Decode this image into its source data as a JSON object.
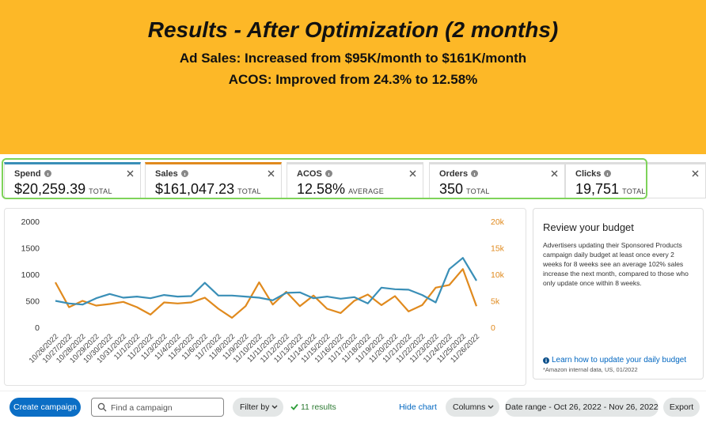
{
  "header": {
    "title": "Results - After Optimization (2 months)",
    "lines": [
      "Ad Sales: Increased from $95K/month to $161K/month",
      "ACOS: Improved from 24.3% to 12.58%"
    ]
  },
  "metrics": [
    {
      "label": "Spend",
      "value": "$20,259.39",
      "unit": "TOTAL"
    },
    {
      "label": "Sales",
      "value": "$161,047.23",
      "unit": "TOTAL"
    },
    {
      "label": "ACOS",
      "value": "12.58%",
      "unit": "AVERAGE"
    },
    {
      "label": "Orders",
      "value": "350",
      "unit": "TOTAL"
    },
    {
      "label": "Clicks",
      "value": "19,751",
      "unit": "TOTAL"
    }
  ],
  "chart_data": {
    "type": "line",
    "categories": [
      "10/26/2022",
      "10/27/2022",
      "10/28/2022",
      "10/29/2022",
      "10/30/2022",
      "10/31/2022",
      "11/1/2022",
      "11/2/2022",
      "11/3/2022",
      "11/4/2022",
      "11/5/2022",
      "11/6/2022",
      "11/7/2022",
      "11/8/2022",
      "11/9/2022",
      "11/10/2022",
      "11/11/2022",
      "11/12/2022",
      "11/13/2022",
      "11/14/2022",
      "11/15/2022",
      "11/16/2022",
      "11/17/2022",
      "11/18/2022",
      "11/19/2022",
      "11/20/2022",
      "11/21/2022",
      "11/22/2022",
      "11/23/2022",
      "11/24/2022",
      "11/25/2022",
      "11/26/2022"
    ],
    "series": [
      {
        "color": "#3a8fb7",
        "axis": "y",
        "values": [
          500,
          450,
          430,
          550,
          630,
          560,
          580,
          550,
          610,
          580,
          590,
          840,
          600,
          600,
          580,
          560,
          510,
          650,
          660,
          550,
          580,
          540,
          570,
          450,
          750,
          720,
          710,
          610,
          470,
          1100,
          1310,
          880
        ]
      },
      {
        "color": "#e08a1e",
        "axis": "y2",
        "values": [
          8500,
          3800,
          5000,
          4100,
          4400,
          4800,
          3800,
          2400,
          4700,
          4500,
          4700,
          5600,
          3500,
          1800,
          4000,
          8500,
          4300,
          6700,
          4000,
          6000,
          3500,
          2700,
          5000,
          6200,
          4200,
          5900,
          3000,
          4200,
          7500,
          8000,
          11000,
          4000
        ]
      }
    ],
    "ylim": [
      0,
      2000
    ],
    "yticks": [
      0,
      500,
      1000,
      1500,
      2000
    ],
    "y2lim": [
      0,
      20000
    ],
    "y2ticks": [
      0,
      {
        "value": 5000,
        "label": "5k"
      },
      {
        "value": 10000,
        "label": "10k"
      },
      {
        "value": 15000,
        "label": "15k"
      },
      {
        "value": 20000,
        "label": "20k"
      }
    ],
    "grid": false
  },
  "sidebar": {
    "title": "Review your budget",
    "body": "Advertisers updating their Sponsored Products campaign daily budget at least once every 2 weeks for 8 weeks see an average 102% sales increase the next month, compared to those who only update once within 8 weeks.",
    "link": "Learn how to update your daily budget",
    "note": "*Amazon internal data, US, 01/2022"
  },
  "toolbar": {
    "create": "Create campaign",
    "search": "Find a campaign",
    "filter": "Filter by",
    "results": "11 results",
    "hide_chart": "Hide chart",
    "columns": "Columns",
    "date_range": "Date range - Oct 26, 2022 - Nov 26, 2022",
    "export": "Export"
  }
}
